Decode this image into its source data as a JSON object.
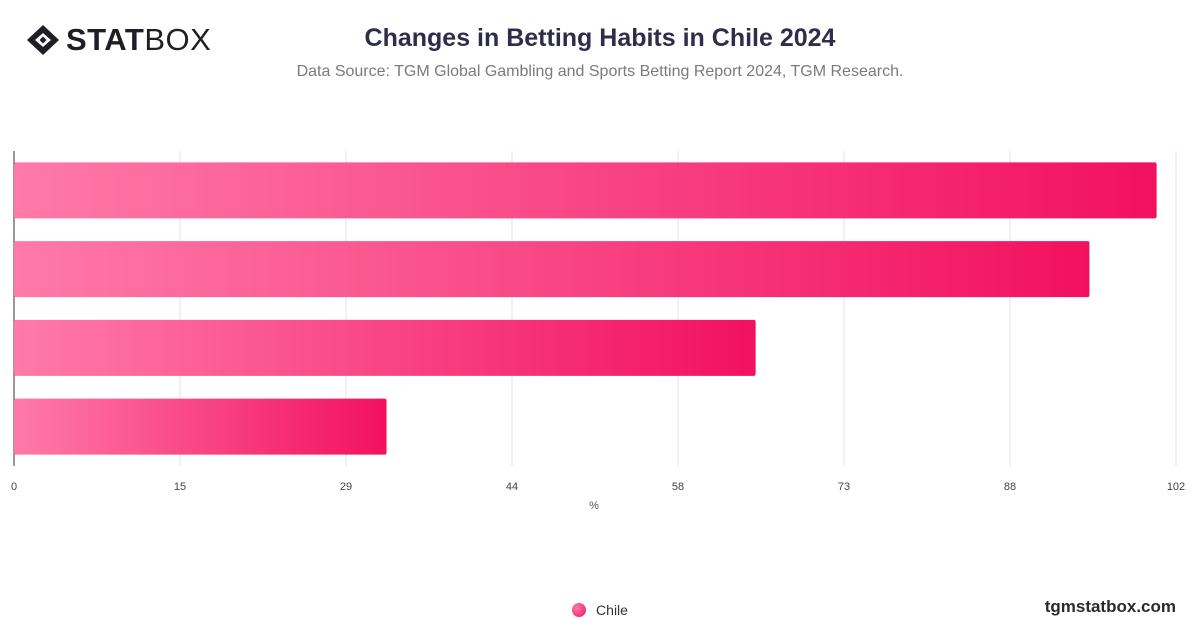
{
  "header": {
    "logo_text_bold": "STAT",
    "logo_text_light": "BOX",
    "title": "Changes in Betting Habits in Chile 2024",
    "subtitle": "Data Source: TGM Global Gambling and Sports Betting Report 2024, TGM Research."
  },
  "chart_data": {
    "type": "bar",
    "orientation": "horizontal",
    "categories": [
      "",
      "",
      "",
      ""
    ],
    "series": [
      {
        "name": "Chile",
        "values": [
          100.3,
          94.4,
          65.1,
          32.7
        ]
      }
    ],
    "x_ticks": [
      "0",
      "15",
      "29",
      "44",
      "58",
      "73",
      "88",
      "102"
    ],
    "xlabel": "%",
    "xlim": [
      0,
      102
    ],
    "grid": "vertical",
    "legend_position": "bottom",
    "colors": {
      "bar_start": "#ff7aa8",
      "bar_end": "#f2115f"
    }
  },
  "footer": {
    "credit": "tgmstatbox.com"
  }
}
